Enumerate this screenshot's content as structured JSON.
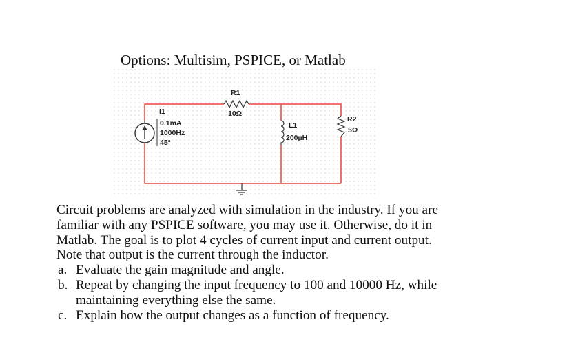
{
  "header": {
    "options_text": "Options: Multisim, PSPICE, or Matlab"
  },
  "schematic": {
    "wire_color": "#e8453c",
    "source": {
      "name": "I1",
      "amplitude": "0.1mA",
      "frequency": "1000Hz",
      "phase": "45°"
    },
    "r1": {
      "name": "R1",
      "value": "10Ω"
    },
    "l1": {
      "name": "L1",
      "value": "200µH"
    },
    "r2": {
      "name": "R2",
      "value": "5Ω"
    }
  },
  "problem": {
    "paragraph_lines": [
      "Circuit problems are analyzed with simulation in the industry. If you are",
      "familiar with any PSPICE software, you may use it.  Otherwise, do it in",
      "Matlab.  The goal is to plot 4 cycles of current input and current output.",
      "Note that output is the current through the inductor."
    ],
    "items": [
      {
        "marker": "a.",
        "lines": [
          "Evaluate the gain magnitude and angle."
        ]
      },
      {
        "marker": "b.",
        "lines": [
          "Repeat by changing the input frequency to 100 and 10000 Hz, while",
          "maintaining everything else the same."
        ]
      },
      {
        "marker": "c.",
        "lines": [
          "Explain how the output changes as a function of frequency."
        ]
      }
    ]
  }
}
